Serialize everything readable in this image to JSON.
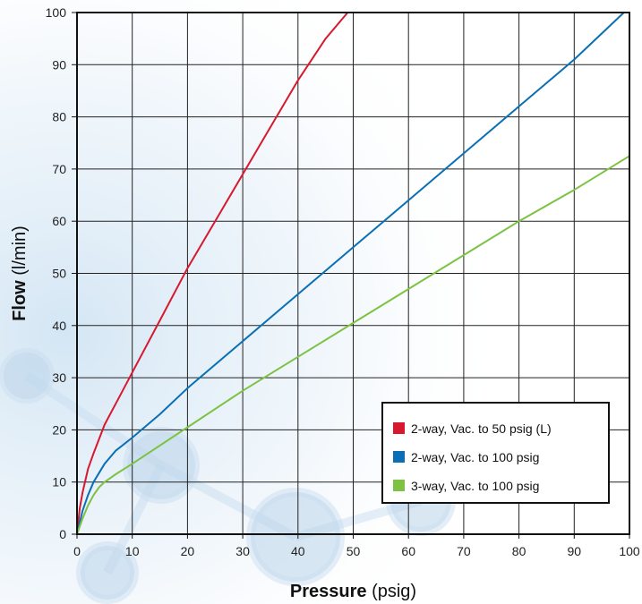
{
  "chart_data": {
    "type": "line",
    "xlabel": {
      "bold": "Flow",
      "rest": " (l/min)"
    },
    "xlabel_pressure": {
      "bold": "Pressure",
      "rest": " (psig)"
    },
    "x_axis": {
      "label_bold": "Pressure",
      "label_rest": " (psig)",
      "range": [
        0,
        100
      ],
      "ticks": [
        "0",
        "10",
        "20",
        "30",
        "40",
        "50",
        "60",
        "70",
        "80",
        "90",
        "100"
      ]
    },
    "y_axis": {
      "label_bold": "Flow",
      "label_rest": " (l/min)",
      "range": [
        0,
        100
      ],
      "ticks": [
        "0",
        "10",
        "20",
        "30",
        "40",
        "50",
        "60",
        "70",
        "80",
        "90",
        "100"
      ]
    },
    "grid": true,
    "legend_position": "bottom-right",
    "series": [
      {
        "name": "2-way, Vac. to 50 psig (L)",
        "color": "#d7192f",
        "x": [
          0,
          0.5,
          1,
          2,
          3,
          5,
          7,
          10,
          15,
          20,
          25,
          30,
          35,
          40,
          45,
          49
        ],
        "y": [
          0,
          5,
          8,
          12.5,
          15.5,
          21,
          25,
          31,
          41,
          51,
          60,
          69,
          78,
          87,
          95,
          100
        ]
      },
      {
        "name": "2-way, Vac. to 100 psig",
        "color": "#0a6fb5",
        "x": [
          0,
          1,
          2,
          3,
          5,
          7,
          10,
          15,
          20,
          30,
          40,
          50,
          60,
          70,
          80,
          90,
          99
        ],
        "y": [
          0,
          4.5,
          7.5,
          10,
          13.5,
          16,
          18.5,
          23,
          28,
          37,
          46,
          55,
          64,
          73,
          82,
          91,
          100
        ]
      },
      {
        "name": "3-way, Vac. to 100 psig",
        "color": "#7dc242",
        "x": [
          0,
          1,
          2,
          3,
          4,
          5,
          7,
          10,
          20,
          30,
          40,
          50,
          60,
          70,
          80,
          90,
          100
        ],
        "y": [
          0,
          3,
          5.5,
          7.5,
          9,
          10,
          11.5,
          13.5,
          20.5,
          27.5,
          34,
          40.5,
          47,
          53.5,
          60,
          66,
          72.5
        ]
      }
    ]
  }
}
